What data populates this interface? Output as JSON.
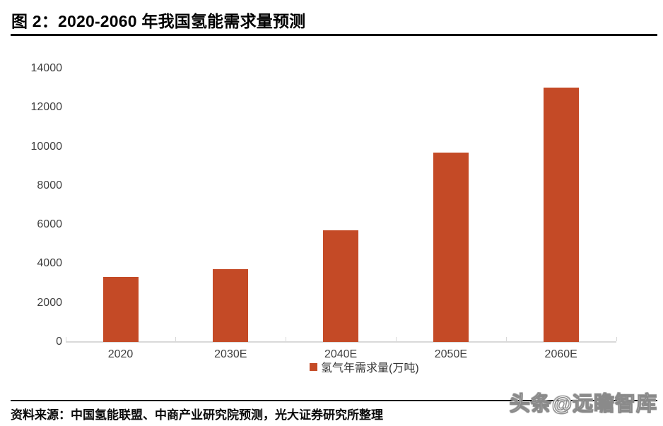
{
  "figure": {
    "title": "图 2：2020-2060 年我国氢能需求量预测",
    "source": "资料来源：中国氢能联盟、中商产业研究院预测，光大证券研究所整理",
    "watermark": "头条@远瞻智库"
  },
  "chart_data": {
    "type": "bar",
    "title": "2020-2060 年我国氢能需求量预测",
    "categories": [
      "2020",
      "2030E",
      "2040E",
      "2050E",
      "2060E"
    ],
    "values": [
      3342,
      3715,
      5700,
      9690,
      13030
    ],
    "series_name": "氢气年需求量(万吨)",
    "xlabel": "",
    "ylabel": "",
    "ylim": [
      0,
      14000
    ],
    "yticks": [
      0,
      2000,
      4000,
      6000,
      8000,
      10000,
      12000,
      14000
    ],
    "grid": false,
    "legend_position": "bottom-center",
    "bar_color": "#C44A26",
    "axis_color": "#D9D9D9",
    "label_color": "#404040"
  }
}
